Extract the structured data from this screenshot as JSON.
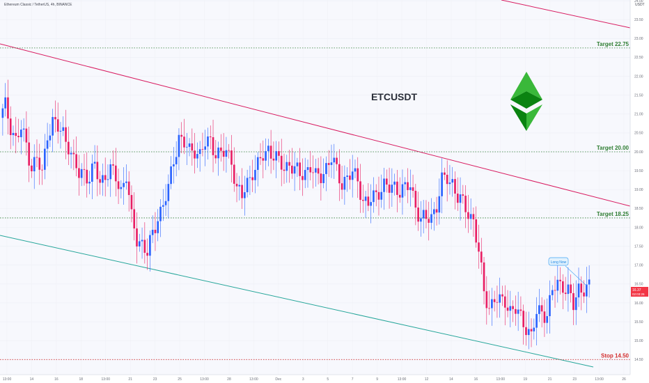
{
  "header": {
    "symbol_line": "Ethereum Classic / TetherUS, 4h, BINANCE",
    "unit": "USDT"
  },
  "chart_data": {
    "type": "candlestick",
    "title": "ETCUSDT",
    "ylim": [
      14.1,
      24.02
    ],
    "y_ticks": [
      "24.00",
      "23.50",
      "23.00",
      "22.50",
      "22.00",
      "21.50",
      "21.00",
      "20.50",
      "20.00",
      "19.50",
      "19.00",
      "18.50",
      "18.00",
      "17.50",
      "17.00",
      "16.50",
      "16.00",
      "15.50",
      "15.00",
      "14.50"
    ],
    "x_ticks": [
      "13:00",
      "14",
      "16",
      "18",
      "13:00",
      "21",
      "23",
      "25",
      "13:00",
      "28",
      "13:00",
      "Dec",
      "3",
      "5",
      "7",
      "9",
      "13:00",
      "12",
      "14",
      "16",
      "13:00",
      "19",
      "21",
      "23",
      "13:00",
      "26"
    ],
    "price_levels": [
      {
        "label": "Target 22.75",
        "price": 22.75,
        "axis_label": "22.75",
        "color": "#2e7d32"
      },
      {
        "label": "Target 20.00",
        "price": 20.0,
        "axis_label": "20.00",
        "color": "#2e7d32"
      },
      {
        "label": "Target 18.25",
        "price": 18.25,
        "axis_label": "18.25",
        "color": "#2e7d32"
      },
      {
        "label": "Stop 14.50",
        "price": 14.5,
        "axis_label": "14.50",
        "color": "#d32f2f"
      }
    ],
    "last_price": {
      "value": "16.37",
      "countdown": "02:03:26"
    },
    "annotation": "Long Now",
    "candle_close_path": [
      20.9,
      21.2,
      20.7,
      20.3,
      20.6,
      20.2,
      19.6,
      19.8,
      19.4,
      20.5,
      20.8,
      20.6,
      20.5,
      20.2,
      19.7,
      19.4,
      19.5,
      19.3,
      19.6,
      19.2,
      19.4,
      19.5,
      19.3,
      19.0,
      19.4,
      18.2,
      17.7,
      17.6,
      17.3,
      17.8,
      18.3,
      18.6,
      19.0,
      19.8,
      20.4,
      20.2,
      20.0,
      20.1,
      19.9,
      20.2,
      20.3,
      20.0,
      19.9,
      20.0,
      19.8,
      19.0,
      18.8,
      19.2,
      19.5,
      19.6,
      19.9,
      20.1,
      19.9,
      19.7,
      19.6,
      19.7,
      19.5,
      19.4,
      19.5,
      19.6,
      19.3,
      19.4,
      19.6,
      19.8,
      19.5,
      19.2,
      19.3,
      19.4,
      19.3,
      18.7,
      18.6,
      18.8,
      19.0,
      19.1,
      19.0,
      19.1,
      19.0,
      19.0,
      19.1,
      18.6,
      18.2,
      18.2,
      18.3,
      18.6,
      19.2,
      19.3,
      19.2,
      18.8,
      18.6,
      18.4,
      18.2,
      17.3,
      16.3,
      15.9,
      16.1,
      16.0,
      16.1,
      15.8,
      15.8,
      15.6,
      15.4,
      15.1,
      15.7,
      15.8,
      15.7,
      16.3,
      16.5,
      16.5,
      16.3,
      15.9,
      16.4,
      16.4,
      16.37
    ]
  }
}
